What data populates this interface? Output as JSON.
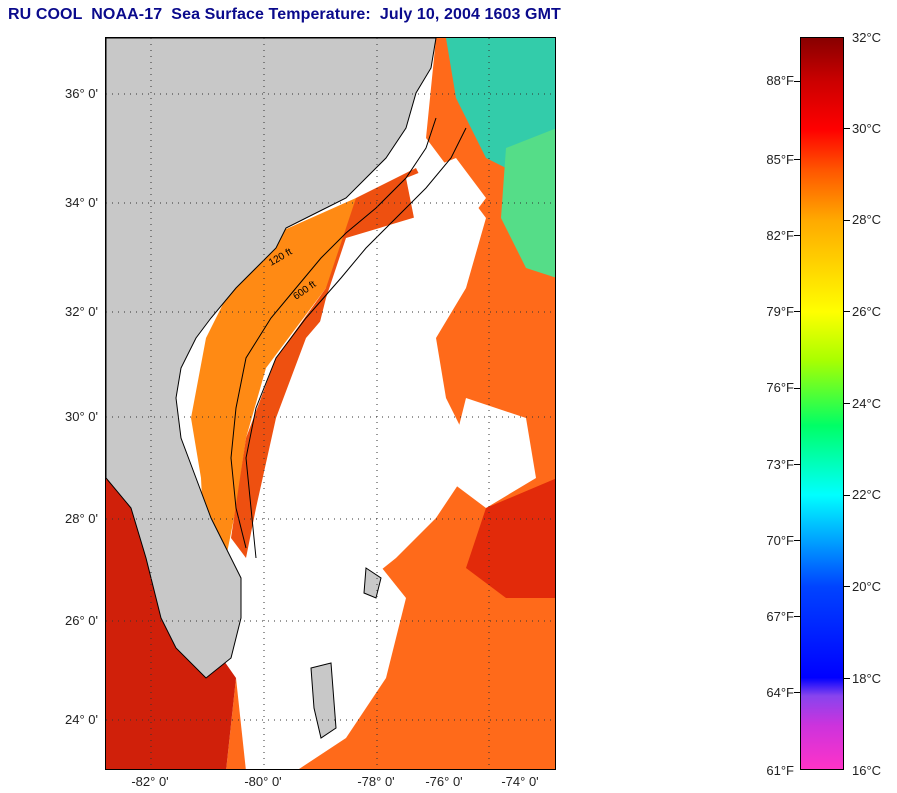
{
  "title": "RU COOL  NOAA-17  Sea Surface Temperature:  July 10, 2004 1603 GMT",
  "latitude_labels": [
    "36° 0'",
    "34° 0'",
    "32° 0'",
    "30° 0'",
    "28° 0'",
    "26° 0'",
    "24° 0'"
  ],
  "longitude_labels": [
    "-82° 0'",
    "-80° 0'",
    "-78° 0'",
    "-76° 0'",
    "-74° 0'"
  ],
  "colorbar": {
    "celsius_labels": [
      "32°C",
      "30°C",
      "28°C",
      "26°C",
      "24°C",
      "22°C",
      "20°C",
      "18°C",
      "16°C"
    ],
    "fahrenheit_labels": [
      "88°F",
      "85°F",
      "82°F",
      "79°F",
      "76°F",
      "73°F",
      "70°F",
      "67°F",
      "64°F",
      "61°F"
    ]
  },
  "contour_labels": [
    "120 ft",
    "600 ft"
  ],
  "colors": {
    "land": "#c8c8c8",
    "title": "#0a0a8c",
    "cloud_or_no_data": "#ffffff"
  }
}
